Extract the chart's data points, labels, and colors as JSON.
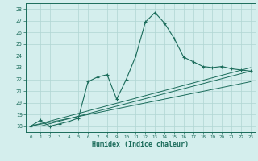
{
  "xlabel": "Humidex (Indice chaleur)",
  "bg_color": "#d4eeed",
  "grid_color": "#b0d5d3",
  "line_color": "#1a6b5a",
  "xlim": [
    -0.5,
    23.5
  ],
  "ylim": [
    17.5,
    28.5
  ],
  "xticks": [
    0,
    1,
    2,
    3,
    4,
    5,
    6,
    7,
    8,
    9,
    10,
    11,
    12,
    13,
    14,
    15,
    16,
    17,
    18,
    19,
    20,
    21,
    22,
    23
  ],
  "yticks": [
    18,
    19,
    20,
    21,
    22,
    23,
    24,
    25,
    26,
    27,
    28
  ],
  "main_curve_x": [
    0,
    1,
    2,
    3,
    4,
    5,
    6,
    7,
    8,
    9,
    10,
    11,
    12,
    13,
    14,
    15,
    16,
    17,
    18,
    19,
    20,
    21,
    22,
    23
  ],
  "main_curve_y": [
    18.0,
    18.5,
    18.0,
    18.2,
    18.4,
    18.7,
    21.8,
    22.2,
    22.4,
    20.3,
    22.0,
    24.0,
    26.9,
    27.7,
    26.8,
    25.5,
    23.9,
    23.5,
    23.1,
    23.0,
    23.1,
    22.9,
    22.8,
    22.7
  ],
  "line1_x": [
    0,
    23
  ],
  "line1_y": [
    18.0,
    23.0
  ],
  "line2_x": [
    0,
    23
  ],
  "line2_y": [
    18.0,
    21.8
  ],
  "line3_x": [
    1,
    23
  ],
  "line3_y": [
    18.0,
    22.7
  ]
}
